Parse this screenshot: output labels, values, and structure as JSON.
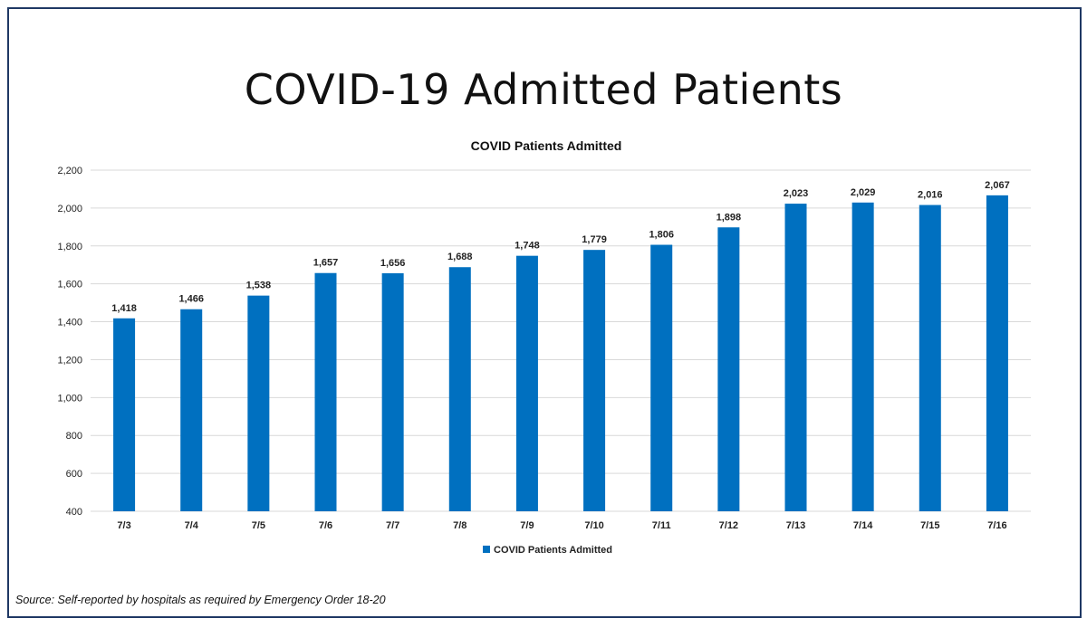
{
  "page": {
    "title": "COVID-19 Admitted Patients",
    "source": "Source: Self-reported by hospitals as required by Emergency Order 18-20"
  },
  "colors": {
    "bar": "#0070c0",
    "frame": "#1f3864",
    "grid": "#d9d9d9"
  },
  "chart_data": {
    "type": "bar",
    "title": "COVID Patients Admitted",
    "categories": [
      "7/3",
      "7/4",
      "7/5",
      "7/6",
      "7/7",
      "7/8",
      "7/9",
      "7/10",
      "7/11",
      "7/12",
      "7/13",
      "7/14",
      "7/15",
      "7/16"
    ],
    "series": [
      {
        "name": "COVID Patients Admitted",
        "values": [
          1418,
          1466,
          1538,
          1657,
          1656,
          1688,
          1748,
          1779,
          1806,
          1898,
          2023,
          2029,
          2016,
          2067
        ],
        "labels": [
          "1,418",
          "1,466",
          "1,538",
          "1,657",
          "1,656",
          "1,688",
          "1,748",
          "1,779",
          "1,806",
          "1,898",
          "2,023",
          "2,029",
          "2,016",
          "2,067"
        ]
      }
    ],
    "ylim": [
      400,
      2200
    ],
    "yticks": [
      400,
      600,
      800,
      1000,
      1200,
      1400,
      1600,
      1800,
      2000,
      2200
    ],
    "ytick_labels": [
      "400",
      "600",
      "800",
      "1,000",
      "1,200",
      "1,400",
      "1,600",
      "1,800",
      "2,000",
      "2,200"
    ],
    "grid": true,
    "legend_position": "bottom",
    "xlabel": "",
    "ylabel": ""
  }
}
